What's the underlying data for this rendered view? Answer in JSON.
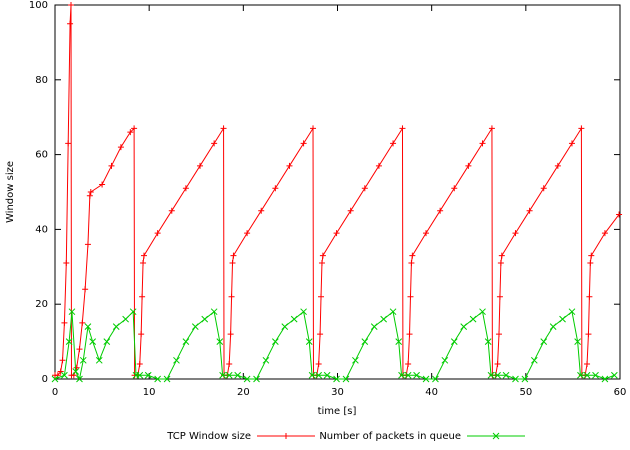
{
  "chart_data": {
    "type": "line",
    "x_label": "time [s]",
    "y_label": "Window size",
    "xlim": [
      0,
      60
    ],
    "ylim": [
      0,
      100
    ],
    "xticks": [
      0,
      10,
      20,
      30,
      40,
      50,
      60
    ],
    "yticks": [
      0,
      20,
      40,
      60,
      80,
      100
    ],
    "legend": "bottom",
    "series": [
      {
        "name": "TCP Window size",
        "color": "#ff0000",
        "marker": "plus",
        "x": [
          0,
          0.3,
          0.6,
          0.8,
          1.0,
          1.2,
          1.4,
          1.6,
          1.7,
          1.75,
          2.0,
          2.3,
          2.6,
          2.9,
          3.2,
          3.5,
          3.7,
          3.8,
          5,
          6,
          7,
          8,
          8.4,
          8.45,
          8.8,
          9.0,
          9.15,
          9.25,
          9.35,
          9.45,
          10.9,
          12.4,
          13.9,
          15.4,
          16.9,
          17.9,
          17.95,
          18.3,
          18.5,
          18.65,
          18.75,
          18.85,
          18.95,
          20.4,
          21.9,
          23.4,
          24.9,
          26.4,
          27.4,
          27.45,
          27.8,
          28.0,
          28.15,
          28.25,
          28.35,
          28.45,
          29.9,
          31.4,
          32.9,
          34.4,
          35.9,
          36.9,
          36.95,
          37.3,
          37.5,
          37.65,
          37.75,
          37.85,
          37.95,
          39.4,
          40.9,
          42.4,
          43.9,
          45.4,
          46.4,
          46.45,
          46.8,
          47.0,
          47.15,
          47.25,
          47.35,
          47.45,
          48.9,
          50.4,
          51.9,
          53.4,
          54.9,
          55.9,
          55.95,
          56.3,
          56.5,
          56.65,
          56.75,
          56.85,
          56.95,
          58.4,
          59.9
        ],
        "values": [
          1,
          1,
          2,
          5,
          15,
          31,
          63,
          95,
          100,
          1,
          1,
          3,
          8,
          15,
          24,
          36,
          49,
          50,
          52,
          57,
          62,
          66,
          67,
          1,
          1,
          4,
          12,
          22,
          31,
          33,
          39,
          45,
          51,
          57,
          63,
          67,
          1,
          1,
          4,
          12,
          22,
          31,
          33,
          39,
          45,
          51,
          57,
          63,
          67,
          1,
          1,
          4,
          12,
          22,
          31,
          33,
          39,
          45,
          51,
          57,
          63,
          67,
          1,
          1,
          4,
          12,
          22,
          31,
          33,
          39,
          45,
          51,
          57,
          63,
          67,
          1,
          1,
          4,
          12,
          22,
          31,
          33,
          39,
          45,
          51,
          57,
          63,
          67,
          1,
          1,
          4,
          12,
          22,
          31,
          33,
          39,
          44
        ]
      },
      {
        "name": "Number of packets in queue",
        "color": "#00cc00",
        "marker": "cross",
        "x": [
          0,
          1,
          1.5,
          1.8,
          2.2,
          2.6,
          3,
          3.5,
          4,
          4.7,
          5.5,
          6.5,
          7.5,
          8.3,
          8.6,
          9.0,
          9.9,
          10.9,
          11.9,
          12.9,
          13.9,
          14.9,
          15.9,
          16.9,
          17.5,
          17.8,
          18.5,
          19.4,
          20.4,
          21.4,
          22.4,
          23.4,
          24.4,
          25.4,
          26.4,
          27.0,
          27.3,
          28.0,
          28.9,
          29.9,
          30.9,
          31.9,
          32.9,
          33.9,
          34.9,
          35.9,
          36.5,
          36.8,
          37.5,
          38.4,
          39.4,
          40.4,
          41.4,
          42.4,
          43.4,
          44.4,
          45.4,
          46.0,
          46.3,
          47.0,
          47.9,
          48.9,
          49.9,
          50.9,
          51.9,
          52.9,
          53.9,
          54.9,
          55.5,
          55.8,
          56.5,
          57.4,
          58.4,
          59.4
        ],
        "values": [
          0,
          1,
          10,
          18,
          2,
          0,
          5,
          14,
          10,
          5,
          10,
          14,
          16,
          18,
          1,
          1,
          1,
          0,
          0,
          5,
          10,
          14,
          16,
          18,
          10,
          1,
          1,
          1,
          0,
          0,
          5,
          10,
          14,
          16,
          18,
          10,
          1,
          1,
          1,
          0,
          0,
          5,
          10,
          14,
          16,
          18,
          10,
          1,
          1,
          1,
          0,
          0,
          5,
          10,
          14,
          16,
          18,
          10,
          1,
          1,
          1,
          0,
          0,
          5,
          10,
          14,
          16,
          18,
          10,
          1,
          1,
          1,
          0,
          1
        ]
      }
    ]
  }
}
